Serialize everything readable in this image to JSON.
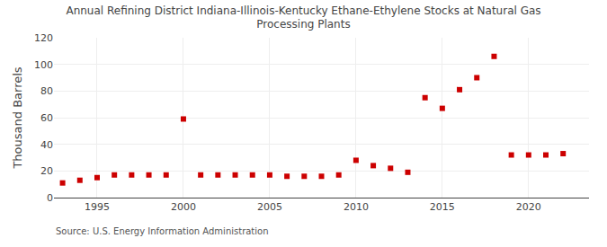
{
  "chart_data": {
    "type": "scatter",
    "title": "Annual Refining District Indiana-Illinois-Kentucky Ethane-Ethylene Stocks at Natural Gas\nProcessing Plants",
    "ylabel": "Thousand Barrels",
    "annotations": [
      "Source: U.S. Energy Information Administration"
    ],
    "x": [
      1993,
      1994,
      1995,
      1996,
      1997,
      1998,
      1999,
      2000,
      2001,
      2002,
      2003,
      2004,
      2005,
      2006,
      2007,
      2008,
      2009,
      2010,
      2011,
      2012,
      2013,
      2014,
      2015,
      2016,
      2017,
      2018,
      2019,
      2020,
      2021,
      2022
    ],
    "values": [
      11,
      13,
      15,
      17,
      17,
      17,
      17,
      59,
      17,
      17,
      17,
      17,
      17,
      16,
      16,
      16,
      17,
      28,
      24,
      22,
      19,
      75,
      67,
      81,
      90,
      106,
      32,
      32,
      32,
      33
    ],
    "color": "#cc0000",
    "marker": "square",
    "xlim": [
      1992.5,
      2023.5
    ],
    "ylim": [
      0,
      120
    ],
    "xticks": [
      1995,
      2000,
      2005,
      2010,
      2015,
      2020
    ],
    "yticks": [
      0,
      20,
      40,
      60,
      80,
      100,
      120
    ],
    "grid": true
  }
}
